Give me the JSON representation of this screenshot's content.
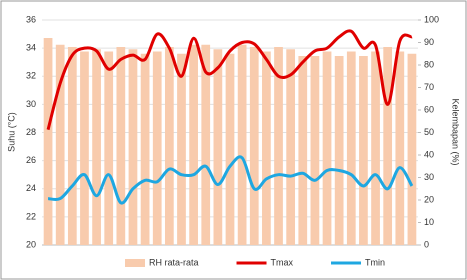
{
  "chart_data": {
    "type": "bar-line",
    "categories": [
      null,
      null,
      null,
      null,
      null,
      null,
      null,
      null,
      null,
      null,
      null,
      null,
      null,
      null,
      null,
      null,
      null,
      null,
      null,
      null,
      null,
      null,
      null,
      null,
      null,
      null,
      null,
      null,
      null,
      null,
      null
    ],
    "series": [
      {
        "name": "RH rata-rata",
        "type": "bar",
        "axis": "y2",
        "color": "#f8cbad",
        "values": [
          92,
          89,
          88,
          86,
          87,
          86,
          88,
          87,
          85,
          86,
          88,
          85,
          89,
          89,
          87,
          85,
          89,
          88,
          86,
          88,
          87,
          84,
          84,
          86,
          84,
          86,
          84,
          86,
          88,
          86,
          85
        ]
      },
      {
        "name": "Tmax",
        "type": "line",
        "axis": "y",
        "color": "#e00000",
        "values": [
          28.2,
          31.5,
          33.5,
          34.0,
          33.8,
          32.5,
          33.2,
          33.5,
          33.2,
          35.0,
          34.0,
          32.0,
          34.7,
          32.3,
          32.6,
          33.8,
          34.4,
          34.3,
          33.2,
          32.0,
          32.1,
          33.0,
          33.8,
          34.0,
          34.8,
          35.2,
          34.0,
          34.2,
          30.0,
          34.5,
          34.8
        ]
      },
      {
        "name": "Tmin",
        "type": "line",
        "axis": "y",
        "color": "#1ea7e1",
        "values": [
          23.3,
          23.3,
          24.2,
          25.0,
          23.5,
          25.0,
          23.0,
          24.0,
          24.6,
          24.5,
          25.4,
          25.0,
          25.0,
          25.6,
          24.3,
          25.6,
          26.2,
          24.0,
          24.7,
          25.0,
          24.9,
          25.1,
          24.6,
          25.3,
          25.3,
          25.0,
          24.2,
          25.0,
          24.0,
          25.5,
          24.2
        ]
      }
    ],
    "ylabel": "Suhu (°C)",
    "y2label": "Kelembapan (%)",
    "ylim": [
      20,
      36
    ],
    "yticks": [
      20,
      22,
      24,
      26,
      28,
      30,
      32,
      34,
      36
    ],
    "y2lim": [
      0,
      100
    ],
    "y2ticks": [
      0,
      10,
      20,
      30,
      40,
      50,
      60,
      70,
      80,
      90,
      100
    ],
    "grid": true,
    "legend": "bottom"
  }
}
